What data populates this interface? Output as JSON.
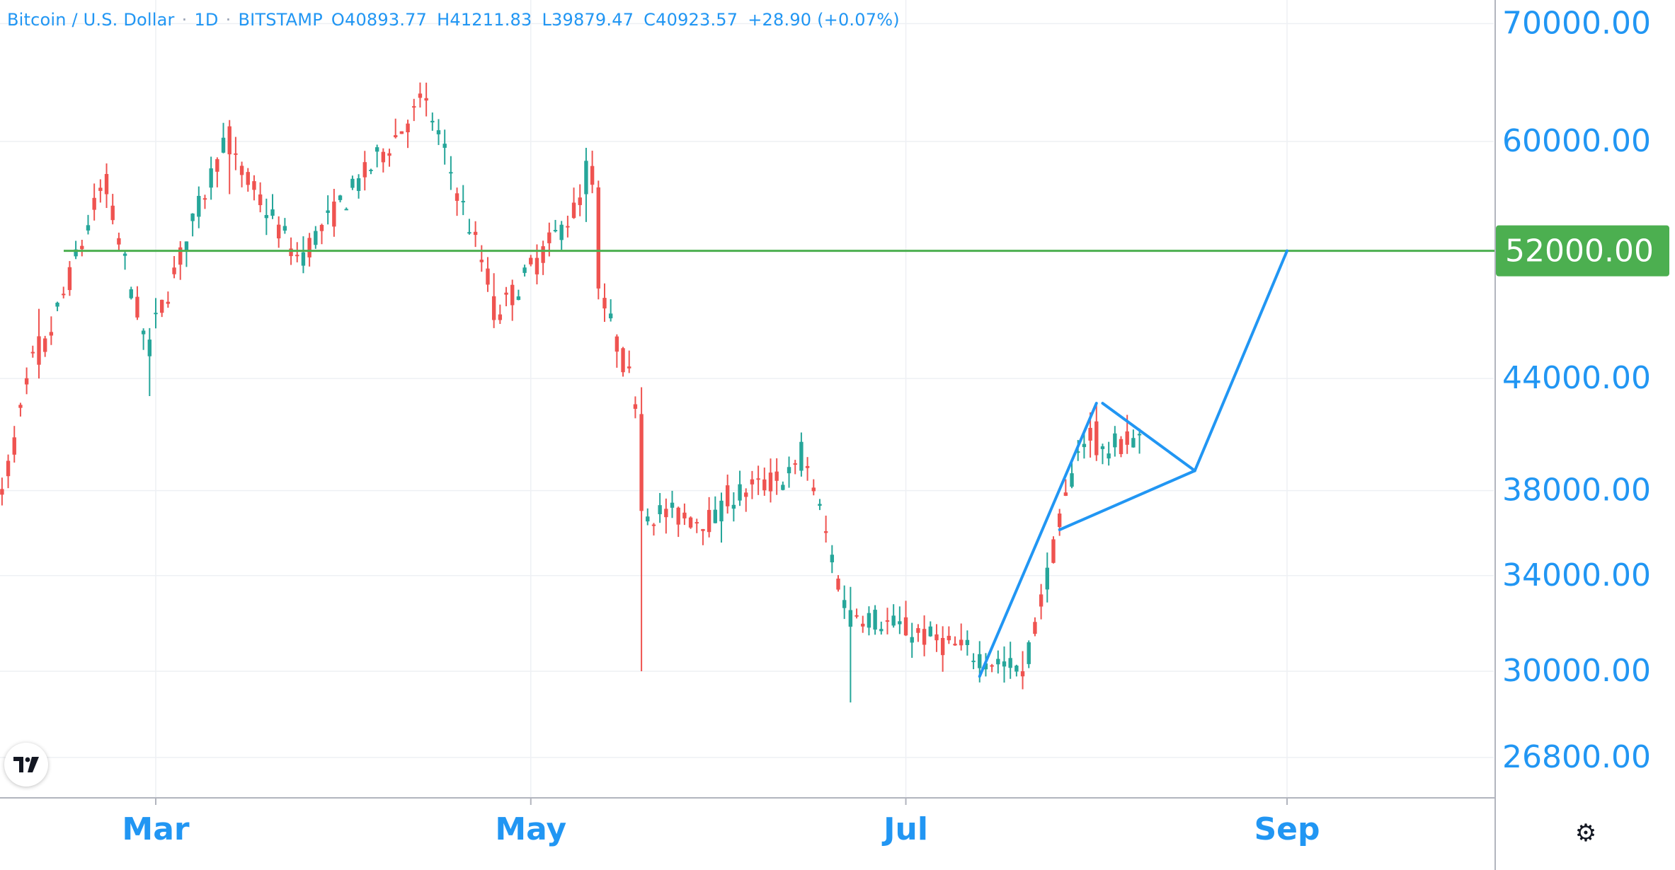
{
  "legend": {
    "symbol": "Bitcoin / U.S. Dollar",
    "interval": "1D",
    "exchange": "BITSTAMP",
    "open": "O40893.77",
    "high": "H41211.83",
    "low": "L39879.47",
    "close": "C40923.57",
    "change": "+28.90 (+0.07%)"
  },
  "icons": {
    "logo": "tradingview-logo-icon",
    "settings": "gear-icon"
  },
  "colors": {
    "up": "#26a69a",
    "down": "#ef5350",
    "drawing": "#2196f3",
    "level_line": "#4caf50",
    "axis_text": "#2196f3"
  },
  "chart_data": {
    "type": "candlestick",
    "title": "Bitcoin / U.S. Dollar · 1D · BITSTAMP",
    "y_scale": "log",
    "ylim": [
      26000,
      70500
    ],
    "y_ticks": [
      "70000.00",
      "60000.00",
      "44000.00",
      "38000.00",
      "34000.00",
      "30000.00",
      "26800.00"
    ],
    "x_ticks": [
      "Mar",
      "May",
      "Jul",
      "Sep"
    ],
    "x_tick_dates": [
      "2021-03-01",
      "2021-05-01",
      "2021-07-01",
      "2021-09-01"
    ],
    "xlim": [
      "2021-01-29",
      "2021-09-34"
    ],
    "grid": true,
    "horizontal_level": {
      "value": 52000,
      "label": "52000.00"
    },
    "drawings": [
      {
        "type": "line",
        "points": [
          [
            "2021-07-13",
            29800
          ],
          [
            "2021-08-01",
            42600
          ]
        ]
      },
      {
        "type": "line",
        "points": [
          [
            "2021-08-02",
            42600
          ],
          [
            "2021-08-17",
            39000
          ]
        ]
      },
      {
        "type": "line",
        "points": [
          [
            "2021-07-26",
            36100
          ],
          [
            "2021-08-17",
            39000
          ]
        ]
      },
      {
        "type": "line",
        "points": [
          [
            "2021-08-17",
            39000
          ],
          [
            "2021-09-01",
            52000
          ]
        ]
      }
    ],
    "key_prices": [
      [
        "2021-02-01",
        37500,
        34000,
        38200,
        33500
      ],
      [
        "2021-02-10",
        46500,
        44800,
        48200,
        44000
      ],
      [
        "2021-02-21",
        57500,
        56000,
        58300,
        55000
      ],
      [
        "2021-02-28",
        45300,
        46300,
        47000,
        43000
      ],
      [
        "2021-03-13",
        61200,
        59000,
        61700,
        56000
      ],
      [
        "2021-03-25",
        51000,
        51900,
        53000,
        50500
      ],
      [
        "2021-04-14",
        63500,
        63300,
        64800,
        62000
      ],
      [
        "2021-04-25",
        49000,
        47500,
        50500,
        47000
      ],
      [
        "2021-05-10",
        56000,
        58500,
        59500,
        54000
      ],
      [
        "2021-05-12",
        56500,
        49500,
        57000,
        48800
      ],
      [
        "2021-05-19",
        42000,
        37000,
        43500,
        30000
      ],
      [
        "2021-06-01",
        36500,
        37500,
        37900,
        35500
      ],
      [
        "2021-06-14",
        39000,
        40500,
        41000,
        38700
      ],
      [
        "2021-06-22",
        31800,
        32500,
        33500,
        28800
      ],
      [
        "2021-07-20",
        30000,
        29800,
        30800,
        29300
      ],
      [
        "2021-07-29",
        40000,
        40000,
        40600,
        39500
      ],
      [
        "2021-08-01",
        41600,
        39800,
        42600,
        39500
      ],
      [
        "2021-08-08",
        40893.77,
        40923.57,
        41211.83,
        39879.47
      ]
    ]
  }
}
